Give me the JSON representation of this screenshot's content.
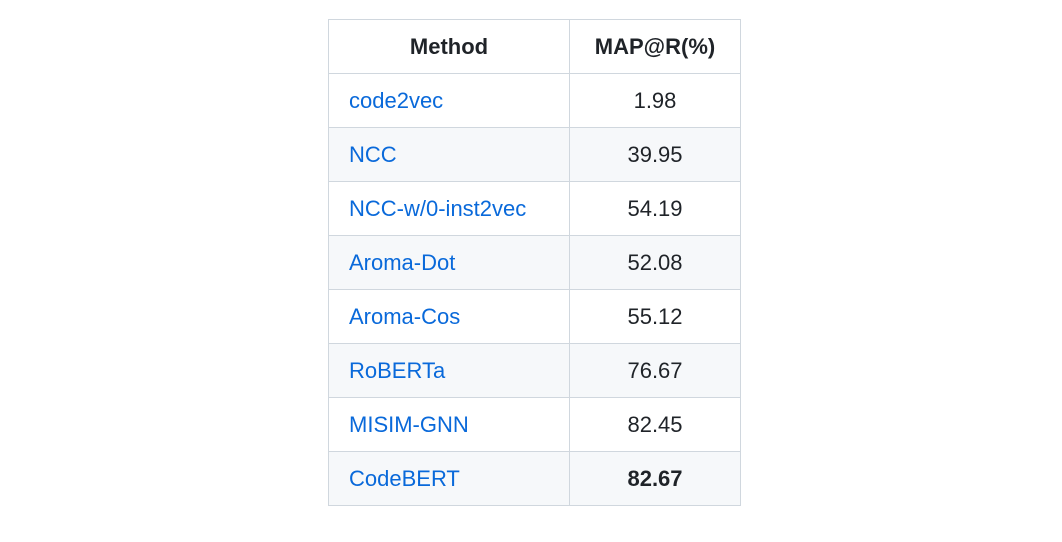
{
  "table": {
    "headers": {
      "method": "Method",
      "map_r": "MAP@R(%)"
    },
    "rows": [
      {
        "method": "code2vec",
        "value": "1.98",
        "bold": false
      },
      {
        "method": "NCC",
        "value": "39.95",
        "bold": false
      },
      {
        "method": "NCC-w/0-inst2vec",
        "value": "54.19",
        "bold": false
      },
      {
        "method": "Aroma-Dot",
        "value": "52.08",
        "bold": false
      },
      {
        "method": "Aroma-Cos",
        "value": "55.12",
        "bold": false
      },
      {
        "method": "RoBERTa",
        "value": "76.67",
        "bold": false
      },
      {
        "method": "MISIM-GNN",
        "value": "82.45",
        "bold": false
      },
      {
        "method": "CodeBERT",
        "value": "82.67",
        "bold": true
      }
    ]
  },
  "colors": {
    "link": "#0969da",
    "border": "#d0d7de",
    "stripe": "#f6f8fa",
    "text": "#1f2328"
  }
}
